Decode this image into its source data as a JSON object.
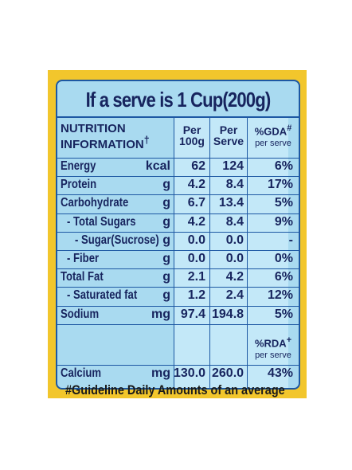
{
  "title": "If a serve is 1 Cup(200g)",
  "columns": {
    "name": "NUTRITION INFORMATION",
    "name_mark": "†",
    "per_100g": "Per 100g",
    "per_serve": "Per Serve",
    "gda": "%GDA",
    "gda_mark": "#",
    "gda_sub": "per serve"
  },
  "rows": [
    [
      "Energy",
      "kcal",
      "62",
      "124",
      "6%"
    ],
    [
      "Protein",
      "g",
      "4.2",
      "8.4",
      "17%"
    ],
    [
      "Carbohydrate",
      "g",
      "6.7",
      "13.4",
      "5%"
    ],
    [
      "- Total Sugars",
      "g",
      "4.2",
      "8.4",
      "9%"
    ],
    [
      "- Sugar(Sucrose)",
      "g",
      "0.0",
      "0.0",
      "-"
    ],
    [
      "- Fiber",
      "g",
      "0.0",
      "0.0",
      "0%"
    ],
    [
      "Total Fat",
      "g",
      "2.1",
      "4.2",
      "6%"
    ],
    [
      "- Saturated fat",
      "g",
      "1.2",
      "2.4",
      "12%"
    ],
    [
      "Sodium",
      "mg",
      "97.4",
      "194.8",
      "5%"
    ]
  ],
  "rda_header": {
    "label": "%RDA",
    "mark": "+",
    "sub": "per serve"
  },
  "calcium": [
    "Calcium",
    "mg",
    "130.0",
    "260.0",
    "43%"
  ],
  "footnote": "#Guideline Daily Amounts of an average"
}
